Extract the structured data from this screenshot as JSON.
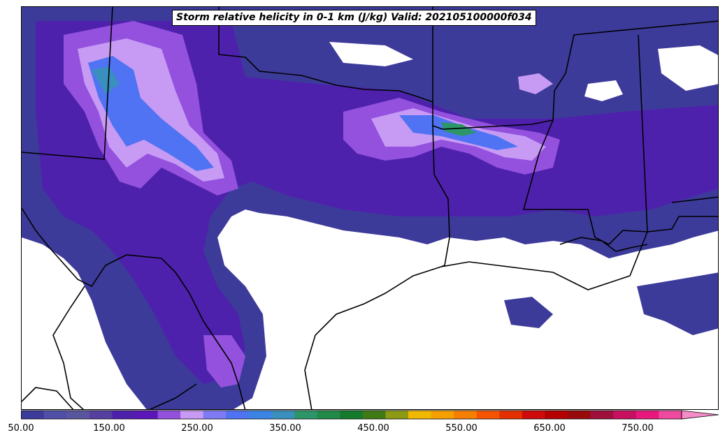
{
  "title": "Storm relative helicity in 0-1 km (J/kg) Valid: 202105100000f034",
  "colorbar": {
    "min": 50,
    "max": 800,
    "step": 25,
    "extend": "max",
    "tick_labels": [
      "50.00",
      "150.00",
      "250.00",
      "350.00",
      "450.00",
      "550.00",
      "650.00",
      "750.00"
    ],
    "tick_values": [
      50,
      150,
      250,
      350,
      450,
      550,
      650,
      750
    ],
    "colors": [
      "#3d3b9a",
      "#4f4fa8",
      "#5a559f",
      "#553fa0",
      "#4e21ac",
      "#5b17b8",
      "#9351de",
      "#c79bf4",
      "#7f7bf4",
      "#4f73f2",
      "#3a84e6",
      "#3b8fbe",
      "#2c9668",
      "#228a48",
      "#147a2c",
      "#3f7a14",
      "#8c9a14",
      "#f0b800",
      "#f5a000",
      "#f57f00",
      "#f55500",
      "#e43000",
      "#cf0a0a",
      "#b30000",
      "#990a0a",
      "#a0103c",
      "#c81060",
      "#e8187e",
      "#f04aa0",
      "#f58cc8"
    ]
  },
  "map": {
    "region": "South Central United States",
    "field": "0-1 km storm relative helicity"
  }
}
